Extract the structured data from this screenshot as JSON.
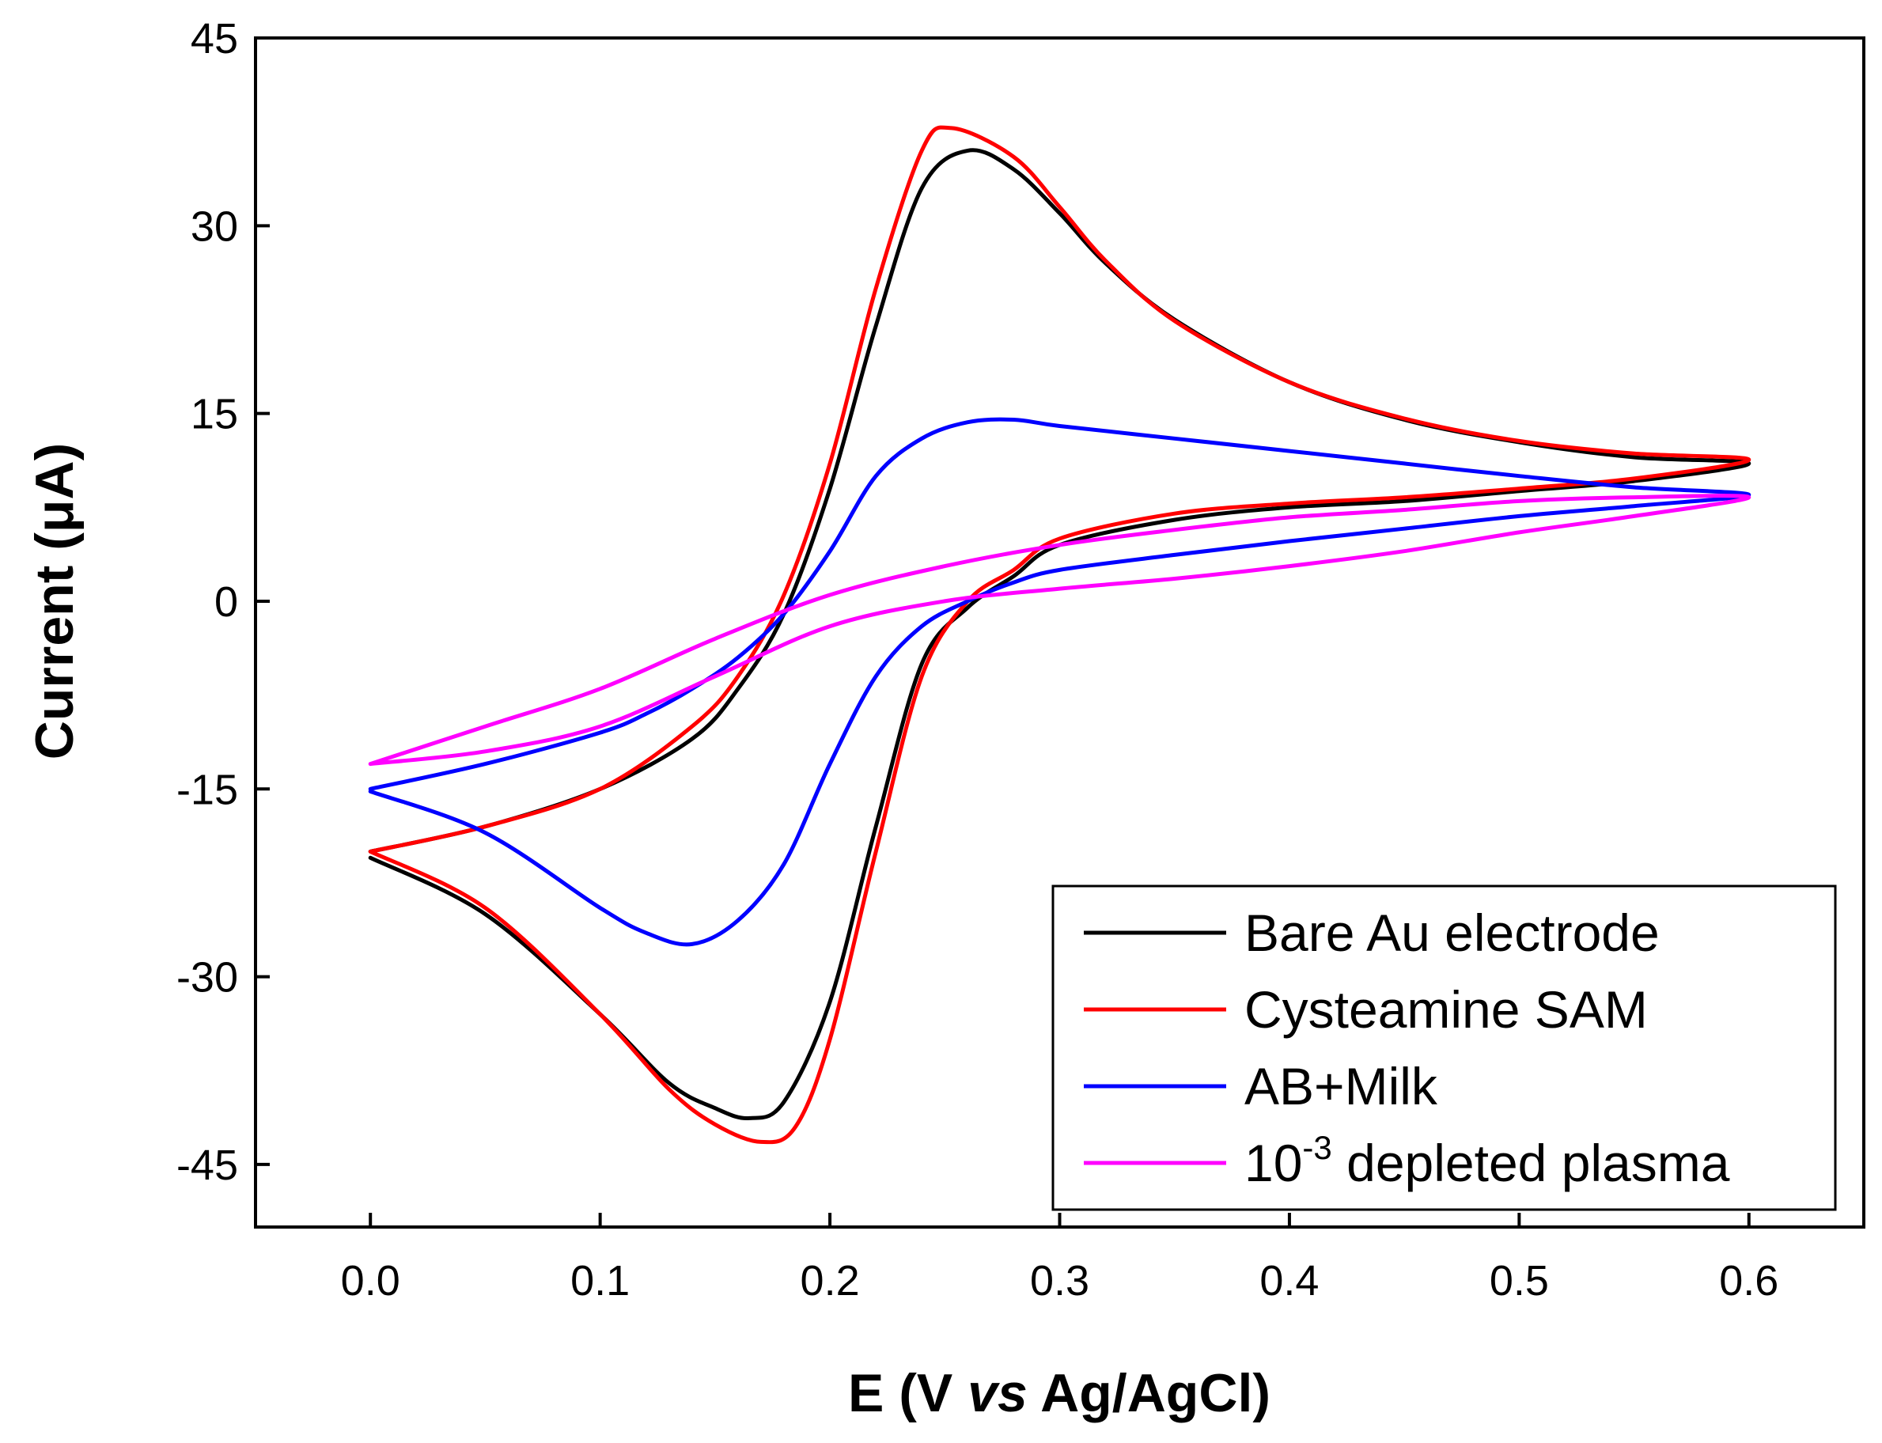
{
  "chart_data": {
    "type": "line",
    "title": "",
    "xlabel": {
      "prefix": "E (V ",
      "italic": "vs",
      "suffix": " Ag/AgCl)"
    },
    "ylabel": "Current (μA)",
    "xlim": [
      -0.05,
      0.65
    ],
    "ylim": [
      -50,
      45
    ],
    "xticks": [
      0.0,
      0.1,
      0.2,
      0.3,
      0.4,
      0.5,
      0.6
    ],
    "xtick_labels": [
      "0.0",
      "0.1",
      "0.2",
      "0.3",
      "0.4",
      "0.5",
      "0.6"
    ],
    "yticks": [
      -45,
      -30,
      -15,
      0,
      15,
      30,
      45
    ],
    "ytick_labels": [
      "-45",
      "-30",
      "-15",
      "0",
      "15",
      "30",
      "45"
    ],
    "legend_position": "bottom-right",
    "series": [
      {
        "name": "Bare Au electrode",
        "color": "#000000",
        "x": [
          0.0,
          0.05,
          0.1,
          0.13,
          0.15,
          0.165,
          0.18,
          0.2,
          0.22,
          0.24,
          0.26,
          0.28,
          0.3,
          0.35,
          0.4,
          0.45,
          0.5,
          0.55,
          0.6,
          0.55,
          0.5,
          0.45,
          0.4,
          0.35,
          0.32,
          0.3,
          0.28,
          0.26,
          0.24,
          0.22,
          0.2,
          0.18,
          0.16,
          0.14,
          0.1,
          0.05,
          0.0
        ],
        "y": [
          -20.5,
          -25.0,
          -33.0,
          -38.5,
          -40.5,
          -41.3,
          -40.0,
          -32.0,
          -18.0,
          -5.0,
          -0.5,
          2.0,
          4.5,
          6.5,
          7.5,
          8.0,
          8.8,
          9.6,
          11.0,
          11.5,
          12.7,
          14.5,
          17.5,
          22.5,
          27.0,
          31.0,
          34.5,
          36.0,
          33.0,
          22.0,
          9.0,
          -1.0,
          -7.0,
          -11.0,
          -15.0,
          -18.0,
          -20.0
        ]
      },
      {
        "name": "Cysteamine SAM",
        "color": "#ff0000",
        "x": [
          0.0,
          0.05,
          0.1,
          0.13,
          0.15,
          0.17,
          0.185,
          0.2,
          0.22,
          0.24,
          0.26,
          0.28,
          0.3,
          0.35,
          0.4,
          0.45,
          0.5,
          0.55,
          0.6,
          0.55,
          0.5,
          0.45,
          0.4,
          0.35,
          0.32,
          0.3,
          0.28,
          0.253,
          0.24,
          0.22,
          0.2,
          0.18,
          0.16,
          0.14,
          0.1,
          0.05,
          0.0
        ],
        "y": [
          -20.0,
          -24.5,
          -33.0,
          -39.0,
          -41.8,
          -43.2,
          -42.0,
          -35.0,
          -20.0,
          -6.0,
          0.0,
          2.5,
          5.0,
          7.0,
          7.8,
          8.3,
          9.0,
          9.8,
          11.3,
          11.8,
          12.8,
          14.6,
          17.5,
          22.4,
          27.2,
          31.5,
          35.5,
          37.8,
          36.0,
          25.0,
          11.0,
          0.5,
          -6.0,
          -10.0,
          -15.0,
          -18.0,
          -20.0
        ]
      },
      {
        "name": "AB+Milk",
        "color": "#0000ff",
        "x": [
          0.0,
          0.05,
          0.1,
          0.12,
          0.14,
          0.16,
          0.18,
          0.2,
          0.22,
          0.24,
          0.26,
          0.28,
          0.3,
          0.35,
          0.4,
          0.45,
          0.5,
          0.55,
          0.6,
          0.55,
          0.5,
          0.45,
          0.4,
          0.35,
          0.3,
          0.28,
          0.26,
          0.24,
          0.22,
          0.2,
          0.18,
          0.16,
          0.14,
          0.12,
          0.1,
          0.05,
          0.0
        ],
        "y": [
          -15.2,
          -18.5,
          -24.5,
          -26.5,
          -27.4,
          -25.5,
          -21.0,
          -13.0,
          -6.0,
          -2.0,
          0.0,
          1.5,
          2.5,
          3.7,
          4.8,
          5.8,
          6.8,
          7.6,
          8.5,
          9.1,
          10.0,
          11.0,
          12.0,
          13.0,
          14.0,
          14.5,
          14.3,
          13.0,
          10.0,
          4.0,
          -1.0,
          -4.5,
          -7.0,
          -9.0,
          -10.5,
          -13.0,
          -15.0
        ]
      },
      {
        "name": "10^-3 depleted plasma",
        "label_main": "10",
        "label_sup": "-3",
        "label_tail": " depleted plasma",
        "color": "#ff00ff",
        "x": [
          0.0,
          0.05,
          0.1,
          0.15,
          0.2,
          0.25,
          0.3,
          0.35,
          0.4,
          0.45,
          0.5,
          0.55,
          0.6,
          0.55,
          0.5,
          0.45,
          0.4,
          0.35,
          0.3,
          0.25,
          0.2,
          0.15,
          0.1,
          0.05,
          0.0
        ],
        "y": [
          -13.0,
          -12.0,
          -10.0,
          -6.0,
          -2.0,
          0.0,
          1.0,
          1.8,
          2.8,
          4.0,
          5.5,
          6.8,
          8.3,
          8.3,
          8.0,
          7.3,
          6.7,
          5.7,
          4.5,
          2.8,
          0.5,
          -3.0,
          -7.0,
          -10.0,
          -13.0
        ]
      }
    ]
  }
}
